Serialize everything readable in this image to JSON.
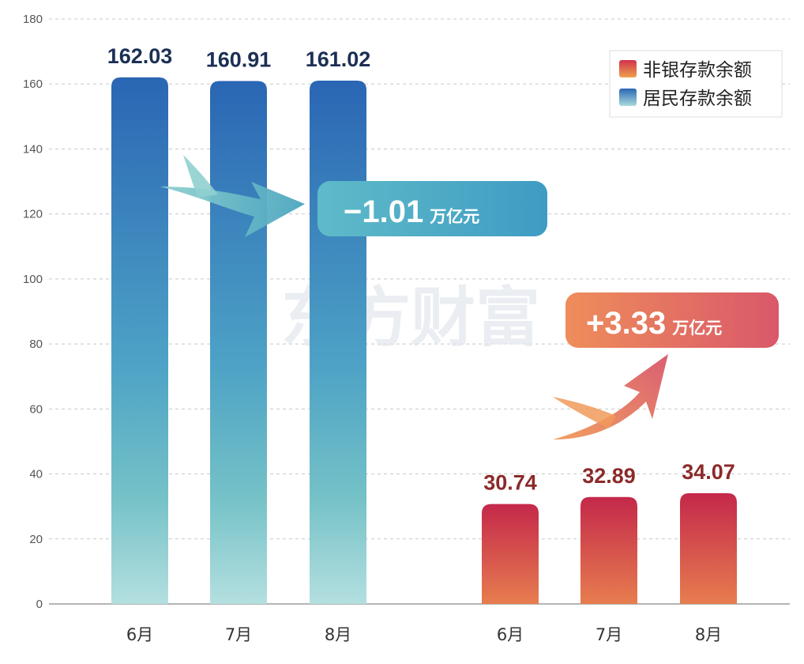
{
  "chart_data": {
    "type": "bar",
    "title": "",
    "xlabel": "",
    "ylabel": "",
    "ylim": [
      0,
      180
    ],
    "yticks": [
      0,
      20,
      40,
      60,
      80,
      100,
      120,
      140,
      160,
      180
    ],
    "grid": true,
    "legend_position": "top-right",
    "groups": [
      {
        "name": "居民存款余额",
        "categories": [
          "6月",
          "7月",
          "8月"
        ],
        "values": [
          162.03,
          160.91,
          161.02
        ],
        "value_labels": [
          "162.03",
          "160.91",
          "161.02"
        ]
      },
      {
        "name": "非银存款余额",
        "categories": [
          "6月",
          "7月",
          "8月"
        ],
        "values": [
          30.74,
          32.89,
          34.07
        ],
        "value_labels": [
          "30.74",
          "32.89",
          "34.07"
        ]
      }
    ],
    "legend": [
      "非银存款余额",
      "居民存款余额"
    ],
    "annotations": [
      {
        "value": "−1.01",
        "unit": "万亿元",
        "series": "居民存款余额",
        "direction": "down"
      },
      {
        "value": "+3.33",
        "unit": "万亿元",
        "series": "非银存款余额",
        "direction": "up"
      }
    ],
    "watermark": "东方财富"
  },
  "colors": {
    "blue_top": "#2a66b4",
    "blue_bottom": "#a9dadc",
    "red_top": "#c4284a",
    "red_bottom": "#e77d4f",
    "blue_label": "#1c2f55",
    "red_label": "#8c2a2a",
    "blue_callout": "#4aa8c5",
    "red_callout": "#de6f5f"
  }
}
